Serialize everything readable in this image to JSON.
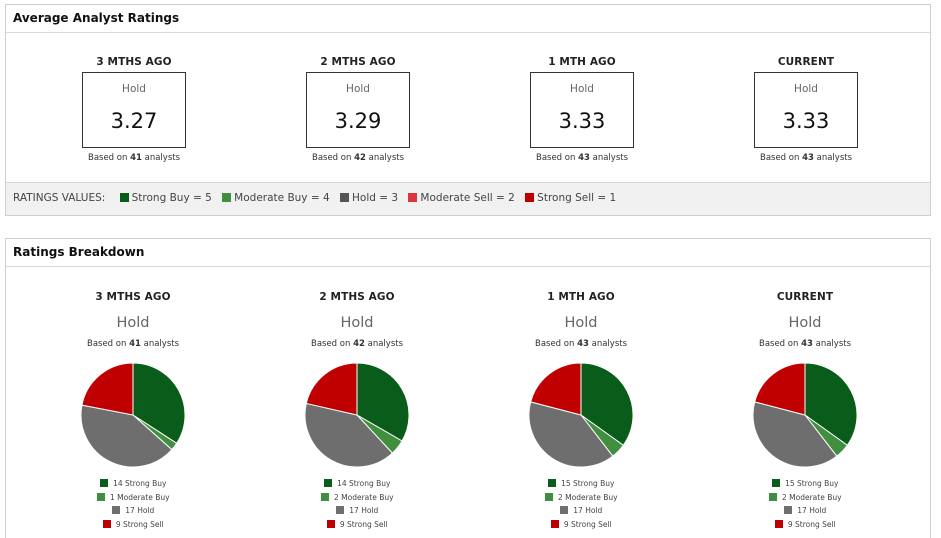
{
  "avg": {
    "title": "Average Analyst Ratings",
    "columns": [
      {
        "period": "3 MTHS AGO",
        "rating": "Hold",
        "value": "3.27",
        "based_pre": "Based on ",
        "analysts": "41",
        "based_post": " analysts"
      },
      {
        "period": "2 MTHS AGO",
        "rating": "Hold",
        "value": "3.29",
        "based_pre": "Based on ",
        "analysts": "42",
        "based_post": " analysts"
      },
      {
        "period": "1 MTH AGO",
        "rating": "Hold",
        "value": "3.33",
        "based_pre": "Based on ",
        "analysts": "43",
        "based_post": " analysts"
      },
      {
        "period": "CURRENT",
        "rating": "Hold",
        "value": "3.33",
        "based_pre": "Based on ",
        "analysts": "43",
        "based_post": " analysts"
      }
    ],
    "ratings_values": {
      "label": "RATINGS VALUES:",
      "items": [
        {
          "text": "Strong Buy = 5",
          "color": "#0a5c1a"
        },
        {
          "text": "Moderate Buy = 4",
          "color": "#3f8f3f"
        },
        {
          "text": "Hold = 3",
          "color": "#555555"
        },
        {
          "text": "Moderate Sell = 2",
          "color": "#d9363e"
        },
        {
          "text": "Strong Sell = 1",
          "color": "#c00000"
        }
      ]
    }
  },
  "breakdown": {
    "title": "Ratings Breakdown"
  },
  "colors": {
    "strong_buy": "#0a5c1a",
    "moderate_buy": "#3f8f3f",
    "hold": "#6e6e6e",
    "strong_sell": "#c00000"
  },
  "chart_data": [
    {
      "type": "pie",
      "title": "3 MTHS AGO",
      "rating": "Hold",
      "based_pre": "Based on ",
      "analysts": "41",
      "based_post": " analysts",
      "labels": [
        "Strong Buy",
        "Moderate Buy",
        "Hold",
        "Strong Sell"
      ],
      "values": [
        14,
        1,
        17,
        9
      ],
      "legend": [
        "14 Strong Buy",
        "1 Moderate Buy",
        "17 Hold",
        "9 Strong Sell"
      ]
    },
    {
      "type": "pie",
      "title": "2 MTHS AGO",
      "rating": "Hold",
      "based_pre": "Based on ",
      "analysts": "42",
      "based_post": " analysts",
      "labels": [
        "Strong Buy",
        "Moderate Buy",
        "Hold",
        "Strong Sell"
      ],
      "values": [
        14,
        2,
        17,
        9
      ],
      "legend": [
        "14 Strong Buy",
        "2 Moderate Buy",
        "17 Hold",
        "9 Strong Sell"
      ]
    },
    {
      "type": "pie",
      "title": "1 MTH AGO",
      "rating": "Hold",
      "based_pre": "Based on ",
      "analysts": "43",
      "based_post": " analysts",
      "labels": [
        "Strong Buy",
        "Moderate Buy",
        "Hold",
        "Strong Sell"
      ],
      "values": [
        15,
        2,
        17,
        9
      ],
      "legend": [
        "15 Strong Buy",
        "2 Moderate Buy",
        "17 Hold",
        "9 Strong Sell"
      ]
    },
    {
      "type": "pie",
      "title": "CURRENT",
      "rating": "Hold",
      "based_pre": "Based on ",
      "analysts": "43",
      "based_post": " analysts",
      "labels": [
        "Strong Buy",
        "Moderate Buy",
        "Hold",
        "Strong Sell"
      ],
      "values": [
        15,
        2,
        17,
        9
      ],
      "legend": [
        "15 Strong Buy",
        "2 Moderate Buy",
        "17 Hold",
        "9 Strong Sell"
      ]
    }
  ]
}
